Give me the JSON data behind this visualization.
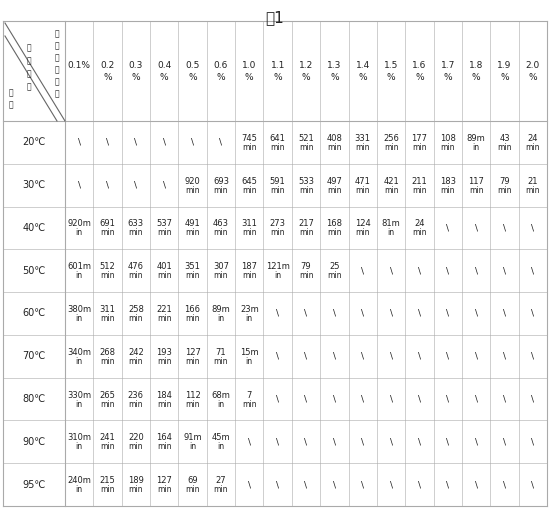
{
  "title": "表1",
  "col_headers_line1": [
    "0.1%",
    "0.2",
    "0.3",
    "0.4",
    "0.5",
    "0.6",
    "1.0",
    "1.1",
    "1.2",
    "1.3",
    "1.4",
    "1.5",
    "1.6",
    "1.7",
    "1.8",
    "1.9",
    "2.0"
  ],
  "col_headers_line2": [
    "",
    "%",
    "%",
    "%",
    "%",
    "%",
    "%",
    "%",
    "%",
    "%",
    "%",
    "%",
    "%",
    "%",
    "%",
    "%",
    "%"
  ],
  "row_headers": [
    "20℃",
    "30℃",
    "40℃",
    "50℃",
    "60℃",
    "70℃",
    "80℃",
    "90℃",
    "95℃"
  ],
  "corner_lines": [
    [
      "温",
      "江"
    ],
    [
      "度",
      "酸"
    ],
    [
      "",
      "质"
    ],
    [
      "化",
      "量"
    ],
    [
      "",
      "分"
    ],
    [
      "时",
      "数"
    ],
    [
      "间",
      ""
    ],
    [
      "",
      "反"
    ],
    [
      "温",
      "应"
    ]
  ],
  "corner_text_left": [
    "温",
    "度",
    "",
    "化",
    "",
    "时",
    "间",
    "",
    "温"
  ],
  "corner_text_right_col": [
    "江",
    "酸",
    "质",
    "量",
    "分",
    "数"
  ],
  "corner_label_top": "江酸质量分数",
  "corner_label_bottom_left": "温\n度",
  "corner_label_mid": "反\n应\n时\n间",
  "data": [
    [
      "\\",
      "\\",
      "\\",
      "\\",
      "\\",
      "\\",
      "745|min",
      "641|min",
      "521|min",
      "408|min",
      "331|min",
      "256|min",
      "177|min",
      "108|min",
      "89m|in",
      "43|min",
      "24|min"
    ],
    [
      "\\",
      "\\",
      "\\",
      "\\",
      "920|min",
      "693|min",
      "645|min",
      "591|min",
      "533|min",
      "497|min",
      "471|min",
      "421|min",
      "211|min",
      "183|min",
      "117|min",
      "79|min",
      "21|min"
    ],
    [
      "920m|in",
      "691|min",
      "633|min",
      "537|min",
      "491|min",
      "463|min",
      "311|min",
      "273|min",
      "217|min",
      "168|min",
      "124|min",
      "81m|in",
      "24|min",
      "\\",
      "\\",
      "\\",
      "\\"
    ],
    [
      "601m|in",
      "512|min",
      "476|min",
      "401|min",
      "351|min",
      "307|min",
      "187|min",
      "121m|in",
      "79|min",
      "25|min",
      "\\",
      "\\",
      "\\",
      "\\",
      "\\",
      "\\",
      "\\"
    ],
    [
      "380m|in",
      "311|min",
      "258|min",
      "221|min",
      "166|min",
      "89m|in",
      "23m|in",
      "\\",
      "\\",
      "\\",
      "\\",
      "\\",
      "\\",
      "\\",
      "\\",
      "\\",
      "\\"
    ],
    [
      "340m|in",
      "268|min",
      "242|min",
      "193|min",
      "127|min",
      "71|min",
      "15m|in",
      "\\",
      "\\",
      "\\",
      "\\",
      "\\",
      "\\",
      "\\",
      "\\",
      "\\",
      "\\"
    ],
    [
      "330m|in",
      "265|min",
      "236|min",
      "184|min",
      "112|min",
      "68m|in",
      "7|min",
      "\\",
      "\\",
      "\\",
      "\\",
      "\\",
      "\\",
      "\\",
      "\\",
      "\\",
      "\\"
    ],
    [
      "310m|in",
      "241|min",
      "220|min",
      "164|min",
      "91m|in",
      "45m|in",
      "\\",
      "\\",
      "\\",
      "\\",
      "\\",
      "\\",
      "\\",
      "\\",
      "\\",
      "\\",
      "\\"
    ],
    [
      "240m|in",
      "215|min",
      "189|min",
      "127|min",
      "69|min",
      "27|min",
      "\\",
      "\\",
      "\\",
      "\\",
      "\\",
      "\\",
      "\\",
      "\\",
      "\\",
      "\\",
      "\\"
    ]
  ],
  "bg_color": "#ffffff",
  "grid_color": "#aaaaaa",
  "text_color": "#222222",
  "title_fontsize": 11,
  "header_fontsize": 6.5,
  "cell_fontsize": 6.0,
  "row_header_fontsize": 7.0
}
